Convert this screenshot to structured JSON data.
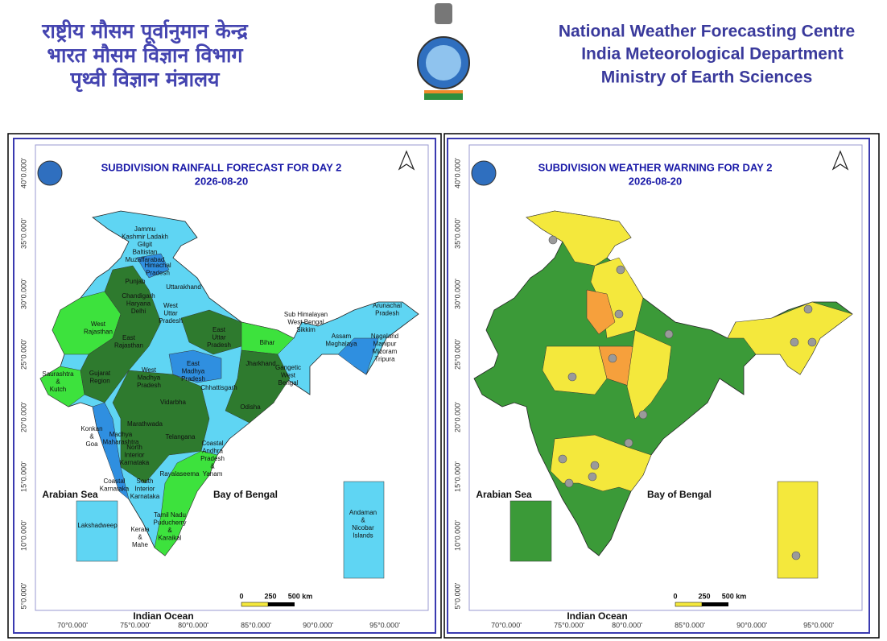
{
  "header": {
    "hindi": [
      "राष्ट्रीय मौसम पूर्वानुमान केन्द्र",
      "भारत मौसम विज्ञान विभाग",
      "पृथ्वी विज्ञान मंत्रालय"
    ],
    "english": [
      "National Weather Forecasting Centre",
      "India Meteorological Department",
      "Ministry of Earth Sciences"
    ]
  },
  "maps": [
    {
      "title": "SUBDIVISION RAINFALL FORECAST FOR DAY 2",
      "date": "2026-08-20",
      "seas": [
        "Arabian Sea",
        "Bay of Bengal",
        "Indian Ocean"
      ],
      "scale": [
        "0",
        "250",
        "500 km"
      ],
      "lon": [
        "70°0.000'",
        "75°0.000'",
        "80°0.000'",
        "85°0.000'",
        "90°0.000'",
        "95°0.000'"
      ],
      "lat": [
        "40°0.000'",
        "35°0.000'",
        "30°0.000'",
        "25°0.000'",
        "20°0.000'",
        "15°0.000'",
        "10°0.000'",
        "5°0.000'"
      ],
      "regions": [
        [
          "Jammu",
          "Kashmir Ladakh",
          "Gilgit",
          "Baltistan",
          "Muzaffarabad"
        ],
        [
          "Himachal",
          "Pradesh"
        ],
        [
          "Punjab"
        ],
        [
          "Uttarakhand"
        ],
        [
          "Chandigarh",
          "Haryana",
          "Delhi"
        ],
        [
          "West",
          "Uttar",
          "Pradesh"
        ],
        [
          "East",
          "Uttar",
          "Pradesh"
        ],
        [
          "West",
          "Rajasthan"
        ],
        [
          "East",
          "Rajasthan"
        ],
        [
          "Bihar"
        ],
        [
          "Sub Himalayan",
          "West Bengal",
          "Sikkim"
        ],
        [
          "Arunachal",
          "Pradesh"
        ],
        [
          "Assam",
          "Meghalaya"
        ],
        [
          "Nagaland",
          "Manipur",
          "Mizoram",
          "Tripura"
        ],
        [
          "Jharkhand"
        ],
        [
          "Gangetic",
          "West",
          "Bengal"
        ],
        [
          "Saurashtra",
          "&",
          "Kutch"
        ],
        [
          "Gujarat",
          "Region"
        ],
        [
          "West",
          "Madhya",
          "Pradesh"
        ],
        [
          "East",
          "Madhya",
          "Pradesh"
        ],
        [
          "Chhattisgarh"
        ],
        [
          "Odisha"
        ],
        [
          "Vidarbha"
        ],
        [
          "Marathwada"
        ],
        [
          "Konkan",
          "&",
          "Goa"
        ],
        [
          "Madhya",
          "Maharashtra"
        ],
        [
          "Telangana"
        ],
        [
          "Coastal",
          "Andhra",
          "Pradesh",
          "&",
          "Yanam"
        ],
        [
          "North",
          "Interior",
          "Karnataka"
        ],
        [
          "Rayalaseema"
        ],
        [
          "Coastal",
          "Karnataka"
        ],
        [
          "South",
          "Interior",
          "Karnataka"
        ],
        [
          "Tamil Nadu",
          "Puducherry",
          "&",
          "Karaikal"
        ],
        [
          "Kerala",
          "&",
          "Mahe"
        ],
        [
          "Lakshadweep"
        ],
        [
          "Andaman",
          "&",
          "Nicobar",
          "Islands"
        ]
      ]
    },
    {
      "title": "SUBDIVISION WEATHER WARNING FOR DAY 2",
      "date": "2026-08-20",
      "seas": [
        "Arabian Sea",
        "Bay of Bengal",
        "Indian Ocean"
      ],
      "scale": [
        "0",
        "250",
        "500 km"
      ],
      "lon": [
        "70°0.000'",
        "75°0.000'",
        "80°0.000'",
        "85°0.000'",
        "90°0.000'",
        "95°0.000'"
      ],
      "lat": [
        "40°0.000'",
        "35°0.000'",
        "30°0.000'",
        "25°0.000'",
        "20°0.000'",
        "15°0.000'",
        "10°0.000'",
        "5°0.000'"
      ]
    }
  ]
}
